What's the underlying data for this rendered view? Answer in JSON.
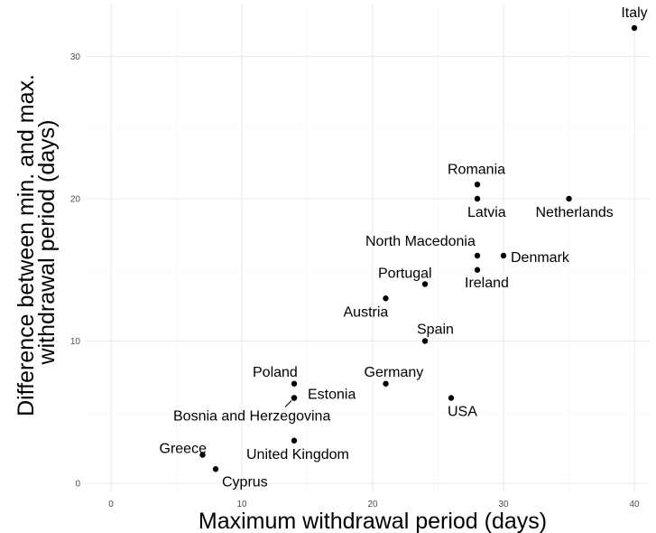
{
  "chart_data": {
    "type": "scatter",
    "xlabel": "Maximum withdrawal period (days)",
    "ylabel_line1": "Difference between min. and max.",
    "ylabel_line2": "withdrawal period (days)",
    "xlim": [
      -2,
      41
    ],
    "ylim": [
      -0.6,
      33.5
    ],
    "x_ticks": [
      0,
      10,
      20,
      30,
      40
    ],
    "y_ticks": [
      0,
      10,
      20,
      30
    ],
    "grid": true,
    "points": [
      {
        "label": "Italy",
        "x": 40,
        "y": 32
      },
      {
        "label": "Romania",
        "x": 28,
        "y": 21
      },
      {
        "label": "Latvia",
        "x": 28,
        "y": 20
      },
      {
        "label": "Netherlands",
        "x": 35,
        "y": 20
      },
      {
        "label": "North Macedonia",
        "x": 28,
        "y": 16
      },
      {
        "label": "Denmark",
        "x": 30,
        "y": 16
      },
      {
        "label": "Ireland",
        "x": 28,
        "y": 15
      },
      {
        "label": "Portugal",
        "x": 24,
        "y": 14
      },
      {
        "label": "Austria",
        "x": 21,
        "y": 13
      },
      {
        "label": "Spain",
        "x": 24,
        "y": 10
      },
      {
        "label": "Poland",
        "x": 14,
        "y": 7
      },
      {
        "label": "Germany",
        "x": 21,
        "y": 7
      },
      {
        "label": "Estonia",
        "x": 14,
        "y": 6
      },
      {
        "label": "USA",
        "x": 26,
        "y": 6
      },
      {
        "label": "Bosnia and Herzegovina",
        "x": 14,
        "y": 6
      },
      {
        "label": "United Kingdom",
        "x": 14,
        "y": 3
      },
      {
        "label": "Greece",
        "x": 7,
        "y": 2
      },
      {
        "label": "Cyprus",
        "x": 8,
        "y": 1
      }
    ]
  }
}
